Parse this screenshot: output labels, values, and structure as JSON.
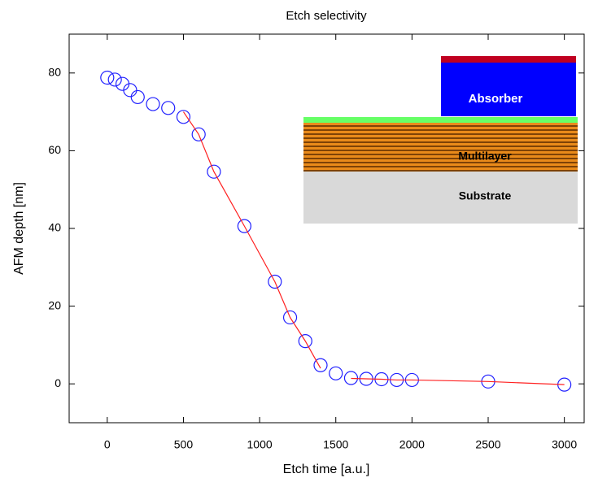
{
  "chart_data": {
    "type": "scatter",
    "title": "Etch selectivity",
    "x_label": "Etch time [a.u.]",
    "y_label": "AFM depth [nm]",
    "xlim": [
      -250,
      3130
    ],
    "ylim": [
      -10,
      90
    ],
    "xticks": [
      0,
      500,
      1000,
      1500,
      2000,
      2500,
      3000
    ],
    "yticks": [
      0,
      20,
      40,
      60,
      80
    ],
    "series": [
      {
        "kind": "markers",
        "color": "#2020ff",
        "x": [
          0,
          50,
          100,
          150,
          200,
          300,
          400,
          500,
          600,
          700,
          900,
          1100,
          1200,
          1300,
          1400,
          1500,
          1600,
          1700,
          1800,
          1900,
          2000,
          2500,
          3000
        ],
        "values": [
          78.8,
          78.3,
          77.2,
          75.6,
          73.8,
          72,
          71,
          68.7,
          64.2,
          54.6,
          40.6,
          26.3,
          17.1,
          11,
          4.8,
          2.7,
          1.5,
          1.3,
          1.2,
          1.0,
          1.0,
          0.6,
          -0.2
        ]
      },
      {
        "kind": "line",
        "color": "#ff2020",
        "x": [
          500,
          600,
          700,
          900,
          1100,
          1200,
          1300,
          1400,
          null,
          1600,
          1700,
          1800,
          1900,
          2000,
          2500,
          3000
        ],
        "values": [
          70,
          64.2,
          54.6,
          40.6,
          26.3,
          17.1,
          11,
          4,
          null,
          1.4,
          1.3,
          1.2,
          1.0,
          1.0,
          0.6,
          -0.2
        ]
      }
    ],
    "annotations": [
      "Absorber",
      "Multilayer",
      "Substrate"
    ]
  }
}
